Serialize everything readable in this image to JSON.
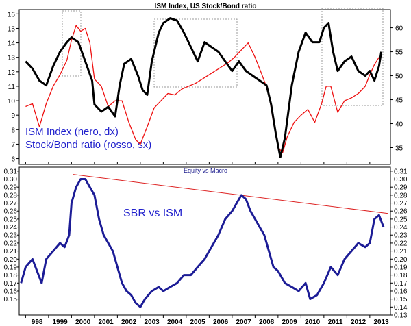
{
  "chart_data": [
    {
      "type": "line",
      "title": "ISM Index, US Stock/Bond ratio",
      "annotations": [
        "ISM Index (nero, dx)",
        "Stock/Bond ratio (rosso, sx)"
      ],
      "left_axis": {
        "ticks": [
          6,
          7,
          8,
          9,
          10,
          11,
          12,
          13,
          14,
          15,
          16
        ],
        "ylim": [
          5.6,
          16.3
        ]
      },
      "right_axis": {
        "ticks": [
          35,
          40,
          45,
          50,
          55,
          60
        ],
        "ylim": [
          31.5,
          63.8
        ]
      },
      "series": [
        {
          "color": "#ee1111",
          "axis": "left",
          "points": [
            [
              1998.0,
              9.6
            ],
            [
              1998.3,
              9.8
            ],
            [
              1998.6,
              8.2
            ],
            [
              1998.9,
              9.8
            ],
            [
              1999.2,
              11.0
            ],
            [
              1999.5,
              11.8
            ],
            [
              1999.8,
              12.8
            ],
            [
              2000.0,
              14.2
            ],
            [
              2000.2,
              15.2
            ],
            [
              2000.4,
              14.8
            ],
            [
              2000.6,
              15.0
            ],
            [
              2000.8,
              14.0
            ],
            [
              2001.0,
              11.5
            ],
            [
              2001.3,
              11.0
            ],
            [
              2001.6,
              9.6
            ],
            [
              2001.9,
              10.0
            ],
            [
              2002.2,
              10.0
            ],
            [
              2002.5,
              8.5
            ],
            [
              2002.8,
              7.3
            ],
            [
              2003.0,
              7.0
            ],
            [
              2003.3,
              8.2
            ],
            [
              2003.6,
              9.5
            ],
            [
              2003.9,
              10.0
            ],
            [
              2004.2,
              10.5
            ],
            [
              2004.5,
              10.4
            ],
            [
              2004.8,
              10.8
            ],
            [
              2005.1,
              11.0
            ],
            [
              2005.4,
              11.2
            ],
            [
              2005.8,
              11.6
            ],
            [
              2006.2,
              12.0
            ],
            [
              2006.5,
              12.3
            ],
            [
              2006.8,
              12.6
            ],
            [
              2007.1,
              13.0
            ],
            [
              2007.4,
              13.5
            ],
            [
              2007.7,
              14.0
            ],
            [
              2008.0,
              13.0
            ],
            [
              2008.3,
              11.8
            ],
            [
              2008.6,
              10.5
            ],
            [
              2008.8,
              8.5
            ],
            [
              2009.0,
              6.8
            ],
            [
              2009.2,
              6.4
            ],
            [
              2009.4,
              7.5
            ],
            [
              2009.7,
              8.5
            ],
            [
              2010.0,
              9.0
            ],
            [
              2010.3,
              9.4
            ],
            [
              2010.6,
              8.5
            ],
            [
              2010.9,
              9.8
            ],
            [
              2011.1,
              11.0
            ],
            [
              2011.3,
              11.0
            ],
            [
              2011.6,
              9.2
            ],
            [
              2011.9,
              10.0
            ],
            [
              2012.2,
              10.2
            ],
            [
              2012.5,
              10.5
            ],
            [
              2012.8,
              11.0
            ],
            [
              2013.0,
              11.8
            ],
            [
              2013.2,
              12.5
            ],
            [
              2013.4,
              13.0
            ]
          ]
        },
        {
          "color": "#000000",
          "axis": "right",
          "points": [
            [
              1998.0,
              53.0
            ],
            [
              1998.3,
              51.5
            ],
            [
              1998.6,
              49.0
            ],
            [
              1998.9,
              48.0
            ],
            [
              1999.2,
              52.0
            ],
            [
              1999.5,
              55.0
            ],
            [
              1999.8,
              57.0
            ],
            [
              2000.0,
              58.0
            ],
            [
              2000.3,
              57.0
            ],
            [
              2000.6,
              53.0
            ],
            [
              2000.9,
              49.0
            ],
            [
              2001.0,
              44.0
            ],
            [
              2001.3,
              42.5
            ],
            [
              2001.6,
              43.5
            ],
            [
              2001.9,
              41.5
            ],
            [
              2002.1,
              48.0
            ],
            [
              2002.3,
              52.5
            ],
            [
              2002.6,
              53.5
            ],
            [
              2002.9,
              50.0
            ],
            [
              2003.1,
              47.0
            ],
            [
              2003.3,
              46.0
            ],
            [
              2003.5,
              53.0
            ],
            [
              2003.8,
              59.0
            ],
            [
              2004.0,
              61.0
            ],
            [
              2004.3,
              62.0
            ],
            [
              2004.6,
              61.5
            ],
            [
              2004.9,
              59.0
            ],
            [
              2005.2,
              56.0
            ],
            [
              2005.5,
              53.0
            ],
            [
              2005.8,
              57.0
            ],
            [
              2006.1,
              56.0
            ],
            [
              2006.4,
              55.0
            ],
            [
              2006.7,
              53.0
            ],
            [
              2007.0,
              51.0
            ],
            [
              2007.3,
              53.0
            ],
            [
              2007.6,
              51.0
            ],
            [
              2007.9,
              50.0
            ],
            [
              2008.2,
              49.0
            ],
            [
              2008.5,
              48.0
            ],
            [
              2008.7,
              44.0
            ],
            [
              2008.9,
              38.0
            ],
            [
              2009.1,
              33.0
            ],
            [
              2009.3,
              37.0
            ],
            [
              2009.6,
              48.0
            ],
            [
              2009.9,
              55.0
            ],
            [
              2010.2,
              59.0
            ],
            [
              2010.5,
              57.0
            ],
            [
              2010.8,
              57.0
            ],
            [
              2011.0,
              60.0
            ],
            [
              2011.2,
              61.0
            ],
            [
              2011.4,
              55.0
            ],
            [
              2011.6,
              51.0
            ],
            [
              2011.9,
              53.0
            ],
            [
              2012.2,
              54.0
            ],
            [
              2012.5,
              51.0
            ],
            [
              2012.8,
              50.0
            ],
            [
              2013.0,
              51.0
            ],
            [
              2013.2,
              49.0
            ],
            [
              2013.4,
              52.0
            ],
            [
              2013.5,
              55.0
            ]
          ]
        }
      ]
    },
    {
      "type": "line",
      "title": "Equity vs Macro",
      "annotations": [
        "SBR vs ISM"
      ],
      "left_axis": {
        "ticks": [
          0.15,
          0.16,
          0.17,
          0.18,
          0.19,
          0.2,
          0.21,
          0.22,
          0.23,
          0.24,
          0.25,
          0.26,
          0.27,
          0.28,
          0.29,
          0.3,
          0.31
        ],
        "ylim": [
          0.13,
          0.315
        ]
      },
      "right_axis": {
        "ticks": [
          0.13,
          0.14,
          0.15,
          0.16,
          0.17,
          0.18,
          0.19,
          0.2,
          0.21,
          0.22,
          0.23,
          0.24,
          0.25,
          0.26,
          0.27,
          0.28,
          0.29,
          0.3,
          0.31
        ],
        "ylim": [
          0.13,
          0.315
        ]
      },
      "x_labels": [
        "998",
        "1999",
        "2000",
        "2001",
        "2002",
        "2003",
        "2004",
        "2005",
        "2006",
        "2007",
        "2008",
        "2009",
        "2010",
        "2011",
        "2012",
        "2013"
      ],
      "x_positions": [
        1998,
        1999,
        2000,
        2001,
        2002,
        2003,
        2004,
        2005,
        2006,
        2007,
        2008,
        2009,
        2010,
        2011,
        2012,
        2013
      ],
      "xlim": [
        1997.72,
        2013.9
      ],
      "trendline": {
        "color": "#dd2222",
        "from": [
          2000.05,
          0.306
        ],
        "to": [
          2013.8,
          0.257
        ]
      },
      "series": [
        {
          "color": "#1c1c96",
          "points": [
            [
              1997.8,
              0.17
            ],
            [
              1998.0,
              0.19
            ],
            [
              1998.3,
              0.2
            ],
            [
              1998.5,
              0.185
            ],
            [
              1998.7,
              0.17
            ],
            [
              1998.9,
              0.2
            ],
            [
              1999.2,
              0.21
            ],
            [
              1999.5,
              0.22
            ],
            [
              1999.7,
              0.215
            ],
            [
              1999.9,
              0.23
            ],
            [
              2000.0,
              0.27
            ],
            [
              2000.2,
              0.29
            ],
            [
              2000.4,
              0.3
            ],
            [
              2000.6,
              0.3
            ],
            [
              2000.8,
              0.29
            ],
            [
              2001.0,
              0.28
            ],
            [
              2001.2,
              0.25
            ],
            [
              2001.4,
              0.23
            ],
            [
              2001.6,
              0.22
            ],
            [
              2001.8,
              0.21
            ],
            [
              2002.0,
              0.19
            ],
            [
              2002.2,
              0.17
            ],
            [
              2002.4,
              0.16
            ],
            [
              2002.6,
              0.155
            ],
            [
              2002.8,
              0.145
            ],
            [
              2003.0,
              0.14
            ],
            [
              2003.2,
              0.15
            ],
            [
              2003.5,
              0.16
            ],
            [
              2003.8,
              0.165
            ],
            [
              2004.0,
              0.16
            ],
            [
              2004.3,
              0.165
            ],
            [
              2004.6,
              0.17
            ],
            [
              2004.9,
              0.18
            ],
            [
              2005.2,
              0.18
            ],
            [
              2005.5,
              0.19
            ],
            [
              2005.8,
              0.2
            ],
            [
              2006.1,
              0.215
            ],
            [
              2006.4,
              0.23
            ],
            [
              2006.7,
              0.25
            ],
            [
              2007.0,
              0.26
            ],
            [
              2007.2,
              0.27
            ],
            [
              2007.4,
              0.28
            ],
            [
              2007.6,
              0.275
            ],
            [
              2007.8,
              0.26
            ],
            [
              2008.0,
              0.25
            ],
            [
              2008.2,
              0.24
            ],
            [
              2008.4,
              0.23
            ],
            [
              2008.6,
              0.21
            ],
            [
              2008.8,
              0.19
            ],
            [
              2009.0,
              0.185
            ],
            [
              2009.3,
              0.17
            ],
            [
              2009.6,
              0.165
            ],
            [
              2009.9,
              0.16
            ],
            [
              2010.2,
              0.17
            ],
            [
              2010.4,
              0.15
            ],
            [
              2010.7,
              0.155
            ],
            [
              2011.0,
              0.17
            ],
            [
              2011.3,
              0.19
            ],
            [
              2011.6,
              0.18
            ],
            [
              2011.9,
              0.2
            ],
            [
              2012.2,
              0.21
            ],
            [
              2012.5,
              0.22
            ],
            [
              2012.8,
              0.215
            ],
            [
              2013.0,
              0.22
            ],
            [
              2013.2,
              0.25
            ],
            [
              2013.4,
              0.255
            ],
            [
              2013.6,
              0.24
            ]
          ]
        }
      ]
    }
  ],
  "labels": {
    "top_title": "ISM Index, US Stock/Bond ratio",
    "top_ann1": "ISM Index (nero, dx)",
    "top_ann2": "Stock/Bond ratio (rosso, sx)",
    "bottom_title": "Equity vs Macro",
    "bottom_ann": "SBR vs ISM"
  }
}
